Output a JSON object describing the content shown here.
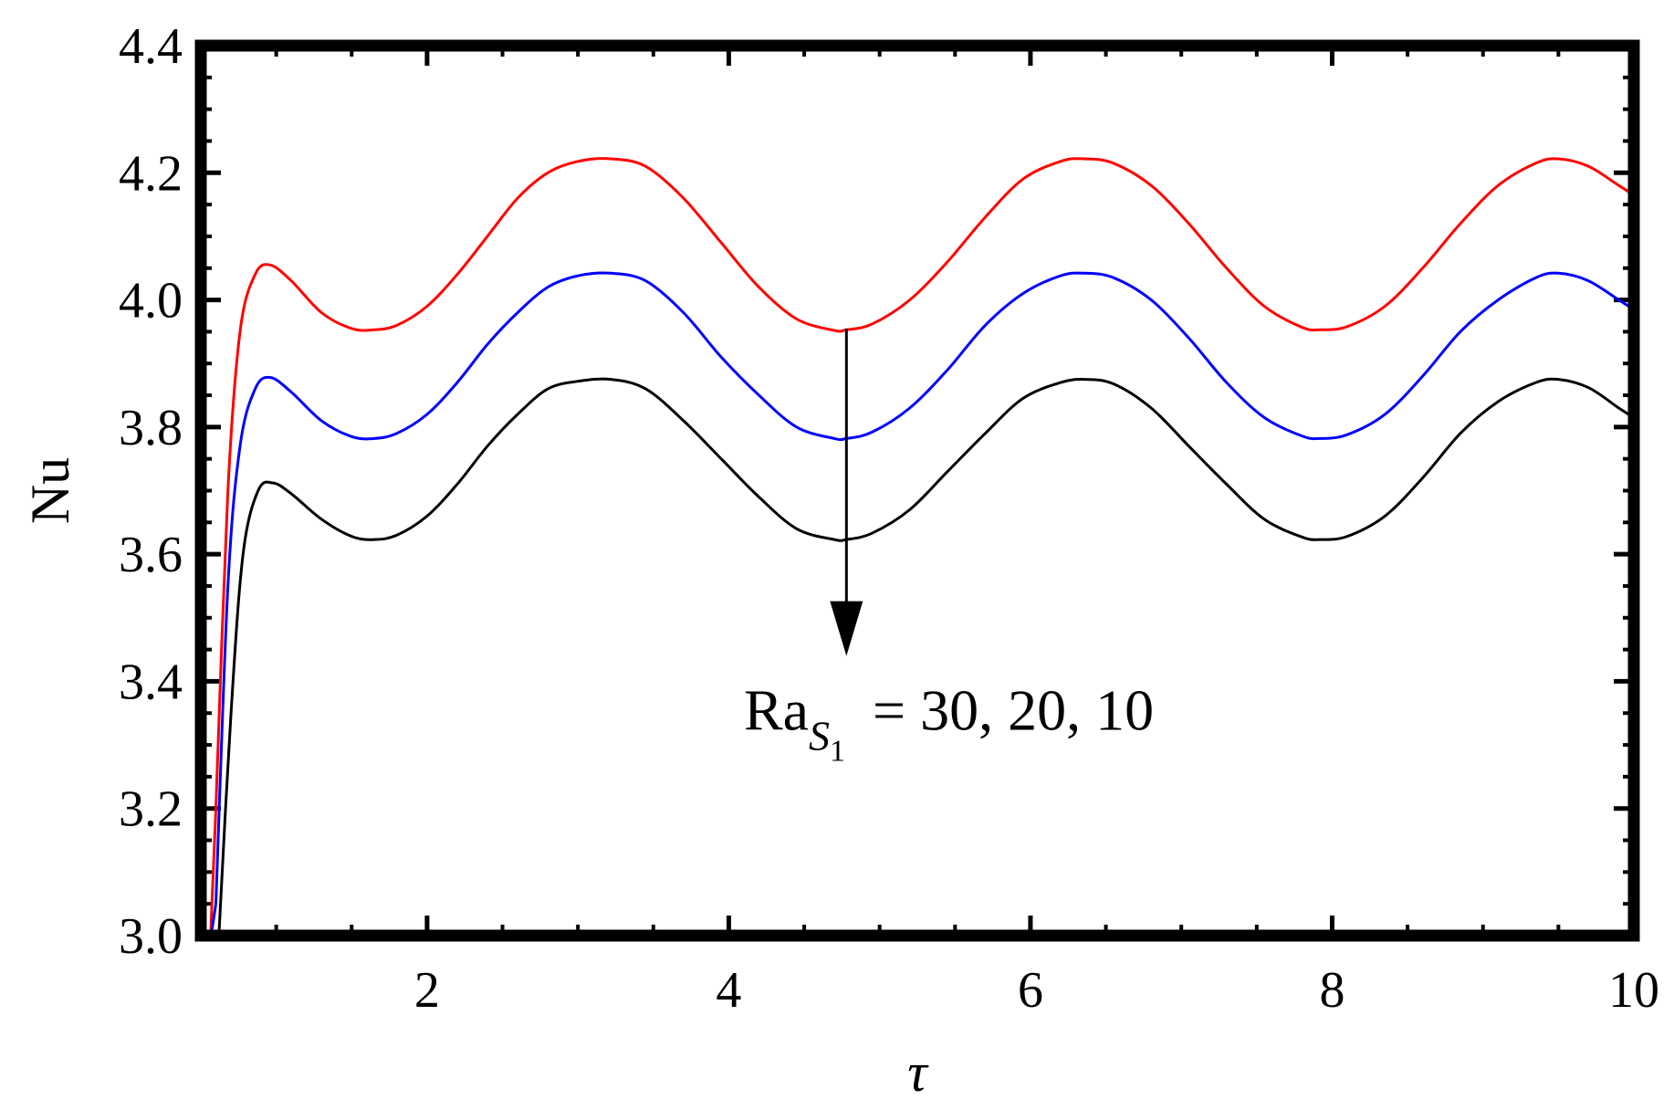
{
  "chart_data": {
    "type": "line",
    "xlabel": "τ",
    "ylabel": "Nu",
    "xlim": [
      0.5,
      10
    ],
    "ylim": [
      3.0,
      4.4
    ],
    "xticks": [
      2,
      4,
      6,
      8,
      10
    ],
    "yticks": [
      3.0,
      3.2,
      3.4,
      3.6,
      3.8,
      4.0,
      4.2,
      4.4
    ],
    "xtick_labels": [
      "2",
      "4",
      "6",
      "8",
      "10"
    ],
    "ytick_labels": [
      "3.0",
      "3.2",
      "3.4",
      "3.6",
      "3.8",
      "4.0",
      "4.2",
      "4.4"
    ],
    "grid": false,
    "series": [
      {
        "color": "#ff0000",
        "x": [
          0.6,
          0.68,
          0.76,
          0.86,
          0.96,
          1.1,
          1.3,
          1.5,
          1.65,
          1.8,
          2.0,
          2.2,
          2.4,
          2.6,
          2.8,
          3.0,
          3.22,
          3.45,
          3.7,
          3.95,
          4.2,
          4.45,
          4.7,
          4.78,
          4.95,
          5.2,
          5.45,
          5.7,
          5.95,
          6.2,
          6.36,
          6.55,
          6.8,
          7.05,
          7.3,
          7.55,
          7.8,
          7.92,
          8.1,
          8.35,
          8.6,
          8.85,
          9.1,
          9.35,
          9.5,
          9.7,
          9.9,
          10.0
        ],
        "y": [
          3.2,
          3.7,
          3.95,
          4.04,
          4.055,
          4.03,
          3.98,
          3.955,
          3.953,
          3.96,
          3.99,
          4.04,
          4.1,
          4.16,
          4.2,
          4.218,
          4.222,
          4.21,
          4.16,
          4.09,
          4.02,
          3.97,
          3.952,
          3.953,
          3.962,
          4.0,
          4.06,
          4.13,
          4.19,
          4.218,
          4.222,
          4.215,
          4.18,
          4.12,
          4.05,
          3.99,
          3.957,
          3.953,
          3.958,
          3.99,
          4.05,
          4.12,
          4.18,
          4.215,
          4.222,
          4.21,
          4.18,
          4.165
        ]
      },
      {
        "color": "#0000ff",
        "x": [
          0.6,
          0.68,
          0.76,
          0.86,
          0.96,
          1.1,
          1.3,
          1.5,
          1.65,
          1.8,
          2.0,
          2.2,
          2.4,
          2.6,
          2.8,
          3.0,
          3.22,
          3.45,
          3.7,
          3.95,
          4.2,
          4.45,
          4.7,
          4.78,
          4.95,
          5.2,
          5.45,
          5.7,
          5.95,
          6.2,
          6.36,
          6.55,
          6.8,
          7.05,
          7.3,
          7.55,
          7.8,
          7.92,
          8.1,
          8.35,
          8.6,
          8.85,
          9.1,
          9.35,
          9.5,
          9.7,
          9.9,
          10.0
        ],
        "y": [
          3.05,
          3.55,
          3.77,
          3.86,
          3.878,
          3.855,
          3.81,
          3.785,
          3.782,
          3.79,
          3.82,
          3.87,
          3.93,
          3.98,
          4.02,
          4.038,
          4.042,
          4.03,
          3.98,
          3.91,
          3.85,
          3.8,
          3.782,
          3.782,
          3.792,
          3.83,
          3.89,
          3.96,
          4.01,
          4.038,
          4.042,
          4.035,
          4.0,
          3.94,
          3.87,
          3.815,
          3.786,
          3.782,
          3.788,
          3.82,
          3.88,
          3.95,
          4.0,
          4.035,
          4.042,
          4.03,
          4.0,
          3.985
        ]
      },
      {
        "color": "#000000",
        "x": [
          0.62,
          0.7,
          0.78,
          0.88,
          0.98,
          1.1,
          1.3,
          1.5,
          1.65,
          1.8,
          2.0,
          2.2,
          2.4,
          2.6,
          2.8,
          3.0,
          3.22,
          3.45,
          3.7,
          3.95,
          4.2,
          4.45,
          4.7,
          4.78,
          4.95,
          5.2,
          5.45,
          5.7,
          5.95,
          6.2,
          6.36,
          6.55,
          6.8,
          7.05,
          7.3,
          7.55,
          7.8,
          7.92,
          8.1,
          8.35,
          8.6,
          8.85,
          9.1,
          9.35,
          9.5,
          9.7,
          9.9,
          10.0
        ],
        "y": [
          3.0,
          3.35,
          3.6,
          3.7,
          3.712,
          3.695,
          3.655,
          3.628,
          3.623,
          3.63,
          3.66,
          3.71,
          3.77,
          3.82,
          3.86,
          3.872,
          3.875,
          3.86,
          3.81,
          3.75,
          3.69,
          3.64,
          3.623,
          3.623,
          3.633,
          3.67,
          3.73,
          3.79,
          3.845,
          3.87,
          3.875,
          3.868,
          3.83,
          3.77,
          3.71,
          3.655,
          3.627,
          3.623,
          3.628,
          3.66,
          3.72,
          3.79,
          3.84,
          3.87,
          3.875,
          3.862,
          3.83,
          3.815
        ]
      }
    ],
    "annotation": {
      "text_main": "Ra",
      "text_sub": "S",
      "text_subsub": "1",
      "text_rest": "= 30, 20, 10",
      "arrow_x": 4.78,
      "arrow_from_y": 3.955,
      "arrow_to_y": 3.44,
      "anchor_x": 4.1,
      "anchor_y": 3.35
    }
  }
}
